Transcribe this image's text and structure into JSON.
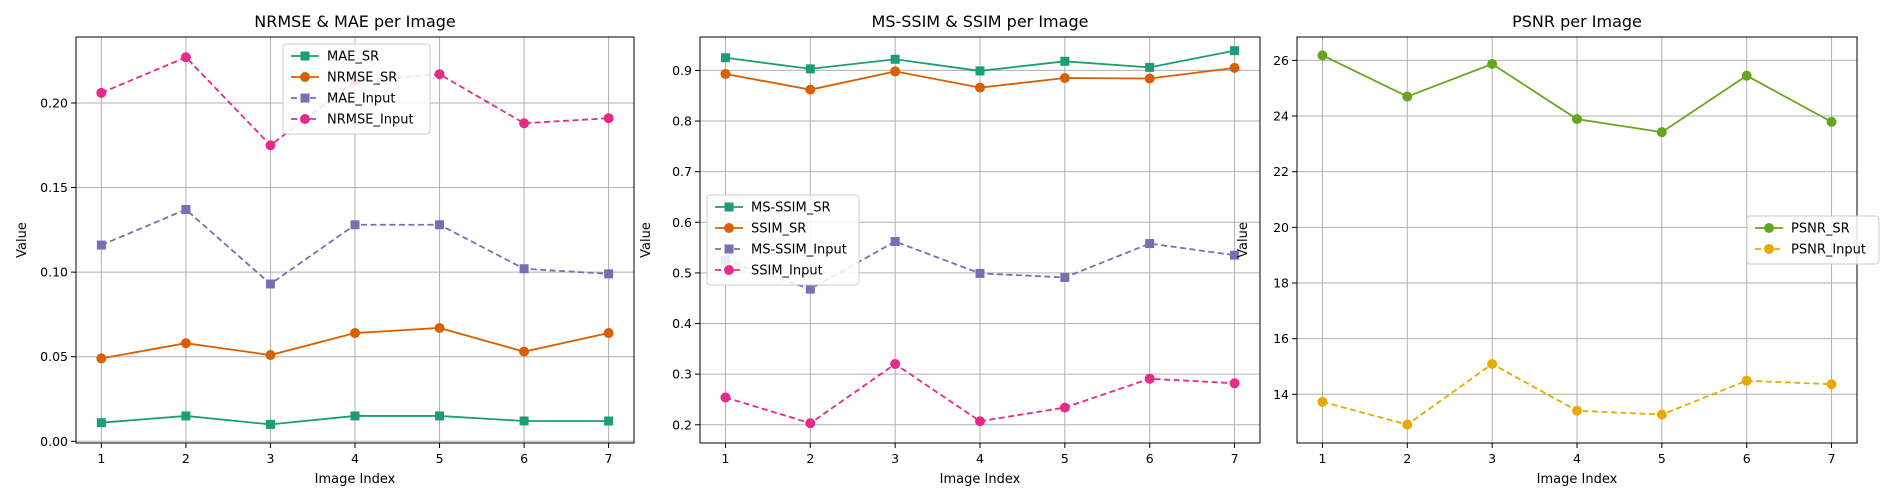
{
  "chart_data": [
    {
      "type": "line",
      "title": "NRMSE & MAE per Image",
      "xlabel": "Image Index",
      "ylabel": "Value",
      "x": [
        1,
        2,
        3,
        4,
        5,
        6,
        7
      ],
      "xlim": [
        0.7,
        7.3
      ],
      "ylim": [
        -0.001,
        0.239
      ],
      "yticks": [
        0.0,
        0.05,
        0.1,
        0.15,
        0.2
      ],
      "ytick_labels": [
        "0.00",
        "0.05",
        "0.10",
        "0.15",
        "0.20"
      ],
      "grid": true,
      "legend_placement": "upper-center",
      "series": [
        {
          "name": "MAE_SR",
          "values": [
            0.011,
            0.015,
            0.01,
            0.015,
            0.015,
            0.012,
            0.012
          ],
          "color": "#1b9e77",
          "marker": "square",
          "dashed": false
        },
        {
          "name": "NRMSE_SR",
          "values": [
            0.049,
            0.058,
            0.051,
            0.064,
            0.067,
            0.053,
            0.064
          ],
          "color": "#d95f02",
          "marker": "circle",
          "dashed": false
        },
        {
          "name": "MAE_Input",
          "values": [
            0.116,
            0.137,
            0.093,
            0.128,
            0.128,
            0.102,
            0.099
          ],
          "color": "#7570b3",
          "marker": "square",
          "dashed": true
        },
        {
          "name": "NRMSE_Input",
          "values": [
            0.206,
            0.227,
            0.175,
            0.213,
            0.217,
            0.188,
            0.191
          ],
          "color": "#e7298a",
          "marker": "circle",
          "dashed": true
        }
      ]
    },
    {
      "type": "line",
      "title": "MS-SSIM & SSIM per Image",
      "xlabel": "Image Index",
      "ylabel": "Value",
      "x": [
        1,
        2,
        3,
        4,
        5,
        6,
        7
      ],
      "xlim": [
        0.7,
        7.3
      ],
      "ylim": [
        0.164,
        0.966
      ],
      "yticks": [
        0.2,
        0.3,
        0.4,
        0.5,
        0.6,
        0.7,
        0.8,
        0.9
      ],
      "ytick_labels": [
        "0.2",
        "0.3",
        "0.4",
        "0.5",
        "0.6",
        "0.7",
        "0.8",
        "0.9"
      ],
      "grid": true,
      "legend_placement": "center-left",
      "series": [
        {
          "name": "MS-SSIM_SR",
          "values": [
            0.925,
            0.903,
            0.922,
            0.899,
            0.918,
            0.906,
            0.939
          ],
          "color": "#1b9e77",
          "marker": "square",
          "dashed": false
        },
        {
          "name": "SSIM_SR",
          "values": [
            0.893,
            0.862,
            0.898,
            0.866,
            0.885,
            0.884,
            0.905
          ],
          "color": "#d95f02",
          "marker": "circle",
          "dashed": false
        },
        {
          "name": "MS-SSIM_Input",
          "values": [
            0.525,
            0.468,
            0.562,
            0.499,
            0.491,
            0.558,
            0.535
          ],
          "color": "#7570b3",
          "marker": "square",
          "dashed": true
        },
        {
          "name": "SSIM_Input",
          "values": [
            0.254,
            0.203,
            0.32,
            0.207,
            0.234,
            0.291,
            0.282
          ],
          "color": "#e7298a",
          "marker": "circle",
          "dashed": true
        }
      ]
    },
    {
      "type": "line",
      "title": "PSNR per Image",
      "xlabel": "Image Index",
      "ylabel": "Value",
      "x": [
        1,
        2,
        3,
        4,
        5,
        6,
        7
      ],
      "xlim": [
        0.7,
        7.3
      ],
      "ylim": [
        12.25,
        26.84
      ],
      "yticks": [
        14,
        16,
        18,
        20,
        22,
        24,
        26
      ],
      "ytick_labels": [
        "14",
        "16",
        "18",
        "20",
        "22",
        "24",
        "26"
      ],
      "grid": true,
      "legend_placement": "center-right",
      "series": [
        {
          "name": "PSNR_SR",
          "values": [
            26.18,
            24.7,
            25.87,
            23.89,
            23.42,
            25.45,
            23.79
          ],
          "color": "#66a61e",
          "marker": "circle",
          "dashed": false
        },
        {
          "name": "PSNR_Input",
          "values": [
            13.73,
            12.91,
            15.09,
            13.41,
            13.27,
            14.49,
            14.36
          ],
          "color": "#e6ab02",
          "marker": "circle",
          "dashed": true
        }
      ]
    }
  ]
}
